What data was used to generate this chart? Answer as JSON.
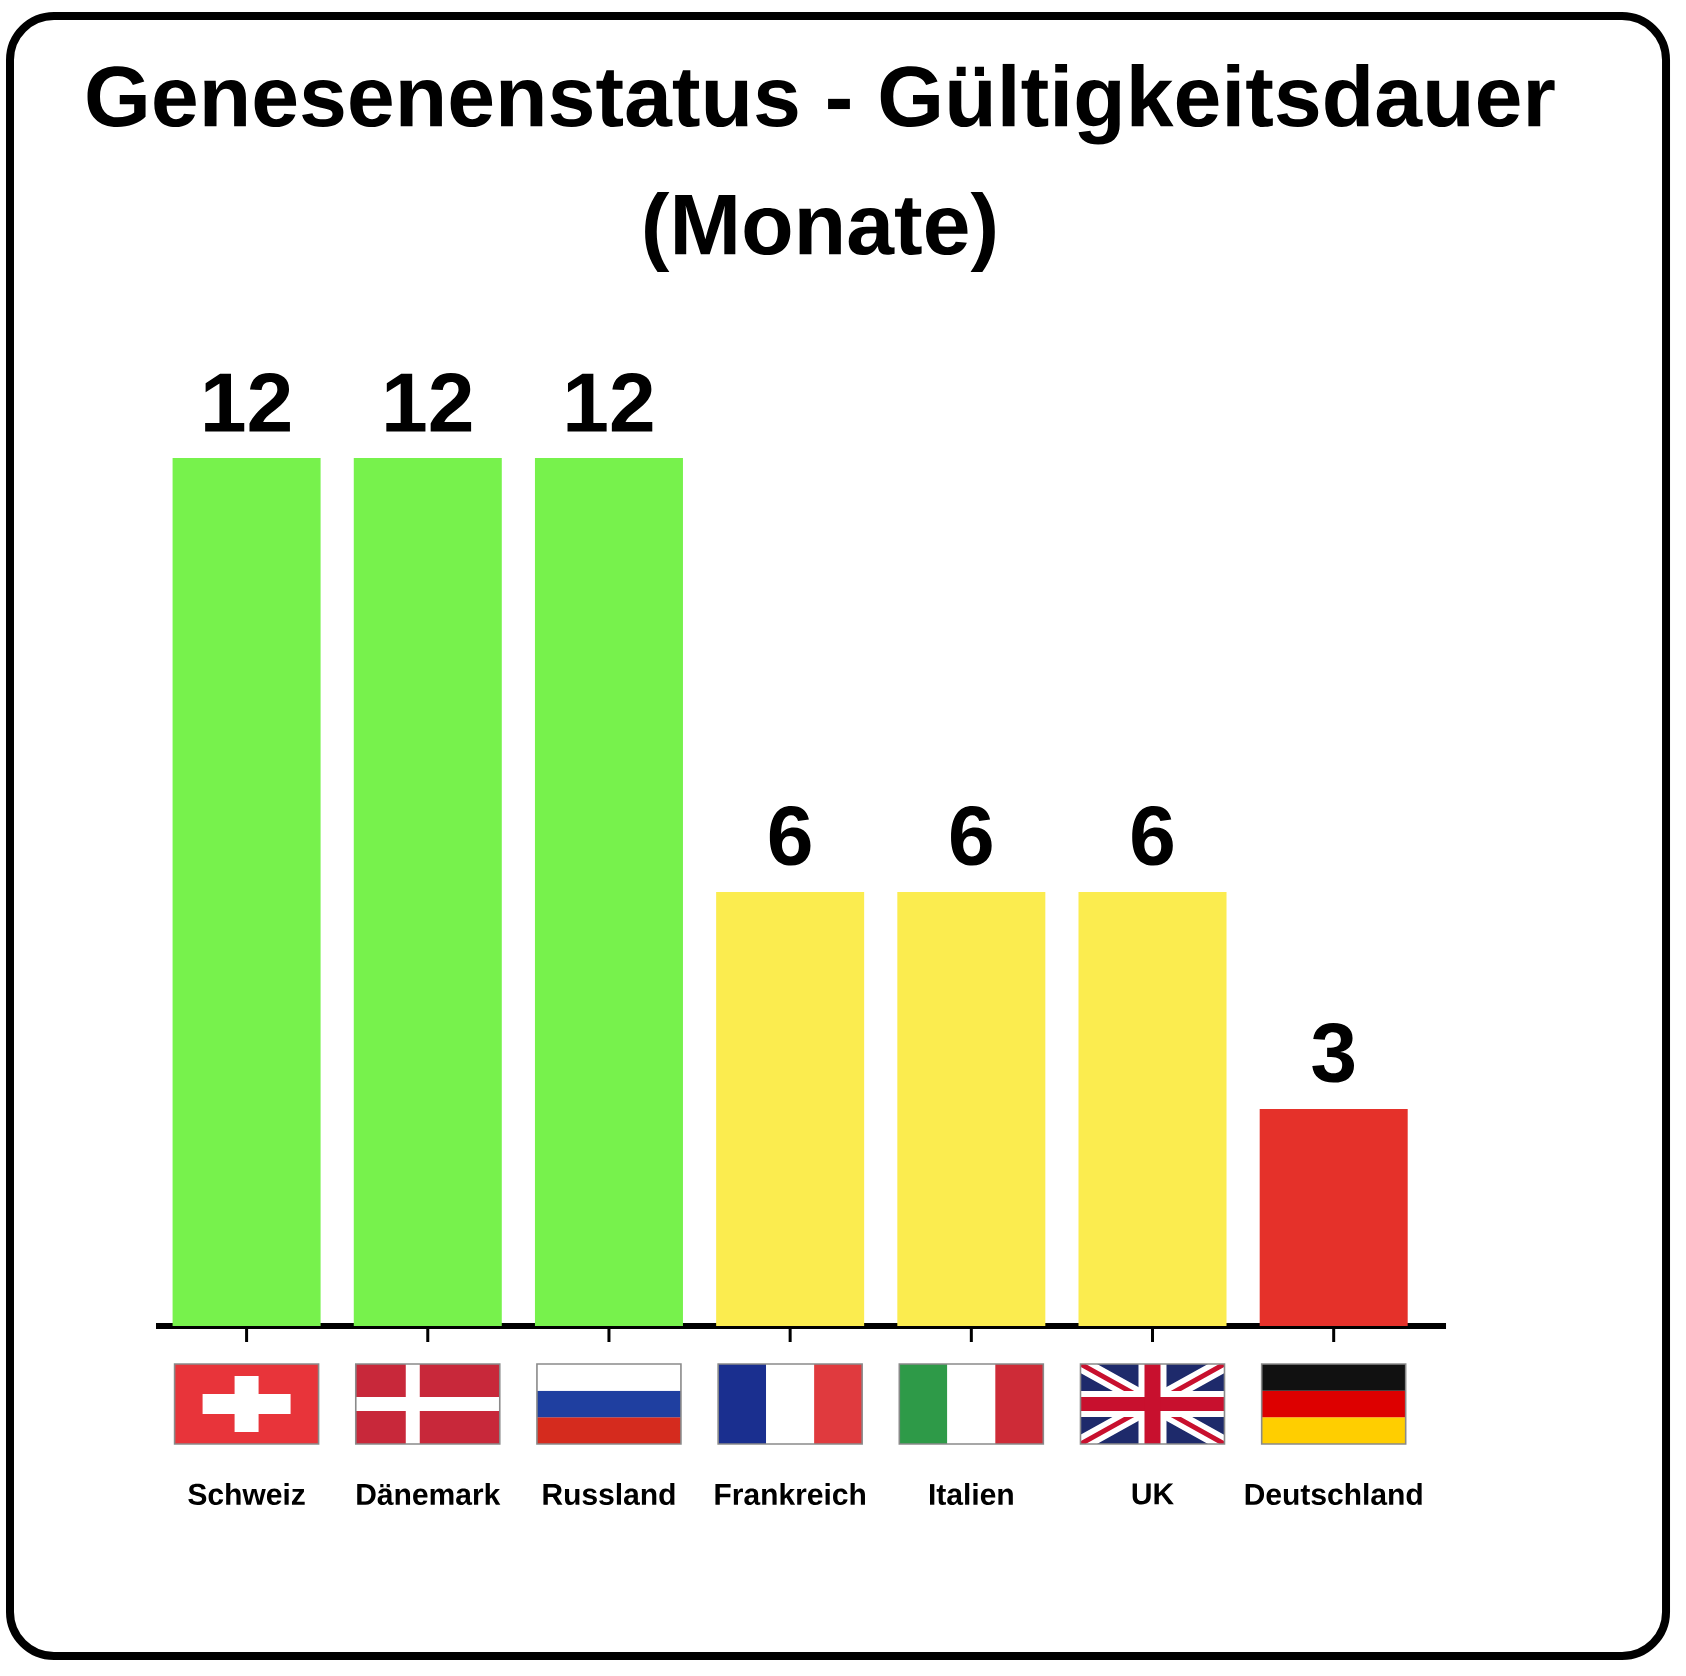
{
  "chart_data": {
    "type": "bar",
    "title": "Genesenenstatus - Gültigkeitsdauer (Monate)",
    "categories": [
      "Schweiz",
      "Dänemark",
      "Russland",
      "Frankreich",
      "Italien",
      "UK",
      "Deutschland"
    ],
    "values": [
      12,
      12,
      12,
      6,
      6,
      6,
      3
    ],
    "colors": [
      "#77f24c",
      "#77f24c",
      "#77f24c",
      "#fbec4f",
      "#fbec4f",
      "#fbec4f",
      "#e5312a"
    ],
    "data_labels": true
  }
}
